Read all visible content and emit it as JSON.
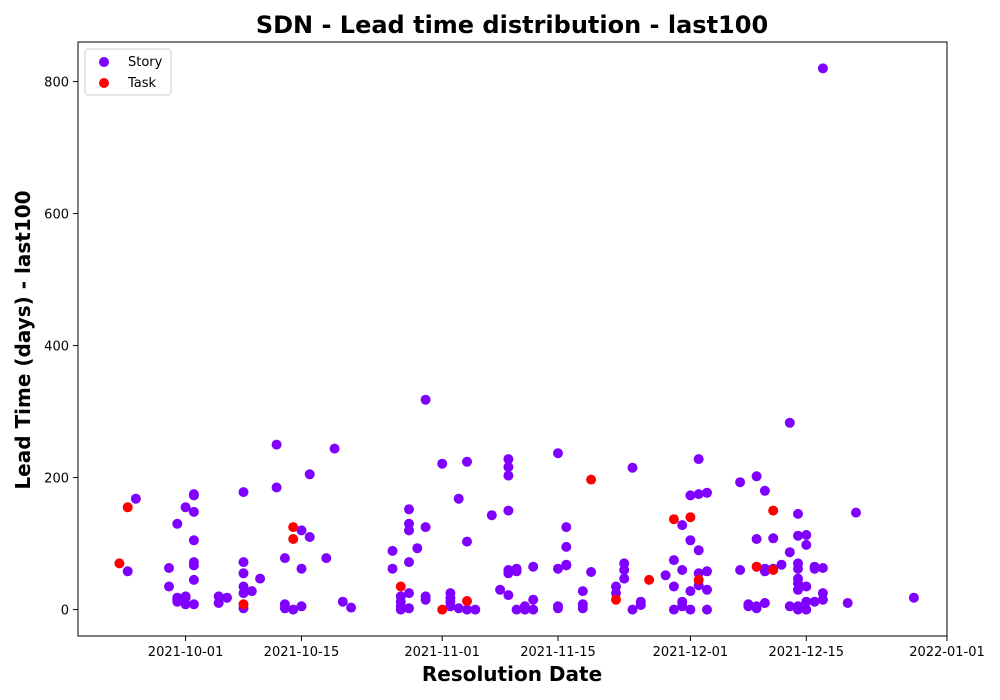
{
  "chart_data": {
    "type": "scatter",
    "title": "SDN - Lead time distribution - last100",
    "xlabel": "Resolution Date",
    "ylabel": "Lead Time (days) - last100",
    "x_type": "date",
    "xlim": [
      "2021-09-18",
      "2022-01-01"
    ],
    "ylim": [
      -40,
      860
    ],
    "xticks": [
      "2021-10-01",
      "2021-10-15",
      "2021-11-01",
      "2021-11-15",
      "2021-12-01",
      "2021-12-15",
      "2022-01-01"
    ],
    "yticks": [
      0,
      200,
      400,
      600,
      800
    ],
    "legend_position": "top-left",
    "grid": false,
    "series": [
      {
        "name": "Story",
        "color": "#7f00ff",
        "points": [
          [
            "2021-09-24",
            58
          ],
          [
            "2021-09-25",
            168
          ],
          [
            "2021-09-29",
            63
          ],
          [
            "2021-09-29",
            35
          ],
          [
            "2021-09-30",
            130
          ],
          [
            "2021-09-30",
            18
          ],
          [
            "2021-09-30",
            12
          ],
          [
            "2021-09-30",
            15
          ],
          [
            "2021-10-01",
            155
          ],
          [
            "2021-10-01",
            18
          ],
          [
            "2021-10-01",
            8
          ],
          [
            "2021-10-01",
            20
          ],
          [
            "2021-10-02",
            175
          ],
          [
            "2021-10-02",
            173
          ],
          [
            "2021-10-02",
            148
          ],
          [
            "2021-10-02",
            105
          ],
          [
            "2021-10-02",
            72
          ],
          [
            "2021-10-02",
            67
          ],
          [
            "2021-10-02",
            45
          ],
          [
            "2021-10-02",
            8
          ],
          [
            "2021-10-05",
            10
          ],
          [
            "2021-10-05",
            20
          ],
          [
            "2021-10-06",
            18
          ],
          [
            "2021-10-08",
            178
          ],
          [
            "2021-10-08",
            72
          ],
          [
            "2021-10-08",
            55
          ],
          [
            "2021-10-08",
            35
          ],
          [
            "2021-10-08",
            25
          ],
          [
            "2021-10-08",
            2
          ],
          [
            "2021-10-09",
            28
          ],
          [
            "2021-10-10",
            47
          ],
          [
            "2021-10-12",
            185
          ],
          [
            "2021-10-12",
            250
          ],
          [
            "2021-10-13",
            78
          ],
          [
            "2021-10-13",
            8
          ],
          [
            "2021-10-13",
            2
          ],
          [
            "2021-10-14",
            0
          ],
          [
            "2021-10-15",
            5
          ],
          [
            "2021-10-15",
            62
          ],
          [
            "2021-10-15",
            120
          ],
          [
            "2021-10-16",
            110
          ],
          [
            "2021-10-16",
            205
          ],
          [
            "2021-10-18",
            78
          ],
          [
            "2021-10-19",
            244
          ],
          [
            "2021-10-20",
            12
          ],
          [
            "2021-10-21",
            3
          ],
          [
            "2021-10-26",
            62
          ],
          [
            "2021-10-26",
            89
          ],
          [
            "2021-10-27",
            5
          ],
          [
            "2021-10-27",
            20
          ],
          [
            "2021-10-27",
            12
          ],
          [
            "2021-10-27",
            0
          ],
          [
            "2021-10-28",
            2
          ],
          [
            "2021-10-28",
            25
          ],
          [
            "2021-10-28",
            72
          ],
          [
            "2021-10-28",
            120
          ],
          [
            "2021-10-28",
            130
          ],
          [
            "2021-10-28",
            152
          ],
          [
            "2021-10-29",
            93
          ],
          [
            "2021-10-30",
            125
          ],
          [
            "2021-10-30",
            20
          ],
          [
            "2021-10-30",
            15
          ],
          [
            "2021-10-30",
            318
          ],
          [
            "2021-11-01",
            221
          ],
          [
            "2021-11-02",
            25
          ],
          [
            "2021-11-02",
            18
          ],
          [
            "2021-11-02",
            12
          ],
          [
            "2021-11-02",
            5
          ],
          [
            "2021-11-03",
            168
          ],
          [
            "2021-11-03",
            2
          ],
          [
            "2021-11-04",
            0
          ],
          [
            "2021-11-04",
            224
          ],
          [
            "2021-11-04",
            103
          ],
          [
            "2021-11-05",
            0
          ],
          [
            "2021-11-07",
            143
          ],
          [
            "2021-11-08",
            30
          ],
          [
            "2021-11-09",
            22
          ],
          [
            "2021-11-09",
            228
          ],
          [
            "2021-11-09",
            216
          ],
          [
            "2021-11-09",
            203
          ],
          [
            "2021-11-09",
            150
          ],
          [
            "2021-11-09",
            60
          ],
          [
            "2021-11-09",
            55
          ],
          [
            "2021-11-10",
            62
          ],
          [
            "2021-11-10",
            58
          ],
          [
            "2021-11-10",
            0
          ],
          [
            "2021-11-11",
            5
          ],
          [
            "2021-11-11",
            0
          ],
          [
            "2021-11-12",
            15
          ],
          [
            "2021-11-12",
            0
          ],
          [
            "2021-11-12",
            65
          ],
          [
            "2021-11-15",
            237
          ],
          [
            "2021-11-15",
            62
          ],
          [
            "2021-11-15",
            5
          ],
          [
            "2021-11-15",
            2
          ],
          [
            "2021-11-16",
            67
          ],
          [
            "2021-11-16",
            95
          ],
          [
            "2021-11-16",
            125
          ],
          [
            "2021-11-16",
            68
          ],
          [
            "2021-11-18",
            28
          ],
          [
            "2021-11-18",
            8
          ],
          [
            "2021-11-18",
            2
          ],
          [
            "2021-11-19",
            57
          ],
          [
            "2021-11-22",
            35
          ],
          [
            "2021-11-22",
            25
          ],
          [
            "2021-11-23",
            47
          ],
          [
            "2021-11-23",
            60
          ],
          [
            "2021-11-23",
            70
          ],
          [
            "2021-11-24",
            0
          ],
          [
            "2021-11-24",
            215
          ],
          [
            "2021-11-25",
            12
          ],
          [
            "2021-11-25",
            7
          ],
          [
            "2021-11-28",
            52
          ],
          [
            "2021-11-29",
            35
          ],
          [
            "2021-11-29",
            75
          ],
          [
            "2021-11-29",
            0
          ],
          [
            "2021-11-30",
            12
          ],
          [
            "2021-11-30",
            5
          ],
          [
            "2021-11-30",
            60
          ],
          [
            "2021-11-30",
            128
          ],
          [
            "2021-12-01",
            0
          ],
          [
            "2021-12-01",
            28
          ],
          [
            "2021-12-01",
            105
          ],
          [
            "2021-12-01",
            173
          ],
          [
            "2021-12-02",
            175
          ],
          [
            "2021-12-02",
            228
          ],
          [
            "2021-12-02",
            90
          ],
          [
            "2021-12-02",
            55
          ],
          [
            "2021-12-02",
            37
          ],
          [
            "2021-12-03",
            30
          ],
          [
            "2021-12-03",
            0
          ],
          [
            "2021-12-03",
            58
          ],
          [
            "2021-12-03",
            177
          ],
          [
            "2021-12-07",
            193
          ],
          [
            "2021-12-07",
            60
          ],
          [
            "2021-12-08",
            5
          ],
          [
            "2021-12-08",
            8
          ],
          [
            "2021-12-09",
            202
          ],
          [
            "2021-12-09",
            107
          ],
          [
            "2021-12-09",
            2
          ],
          [
            "2021-12-09",
            5
          ],
          [
            "2021-12-10",
            10
          ],
          [
            "2021-12-10",
            180
          ],
          [
            "2021-12-10",
            62
          ],
          [
            "2021-12-10",
            58
          ],
          [
            "2021-12-11",
            108
          ],
          [
            "2021-12-11",
            62
          ],
          [
            "2021-12-12",
            68
          ],
          [
            "2021-12-13",
            283
          ],
          [
            "2021-12-13",
            5
          ],
          [
            "2021-12-13",
            87
          ],
          [
            "2021-12-14",
            145
          ],
          [
            "2021-12-14",
            112
          ],
          [
            "2021-12-14",
            70
          ],
          [
            "2021-12-14",
            62
          ],
          [
            "2021-12-14",
            47
          ],
          [
            "2021-12-14",
            40
          ],
          [
            "2021-12-14",
            30
          ],
          [
            "2021-12-14",
            5
          ],
          [
            "2021-12-14",
            0
          ],
          [
            "2021-12-15",
            113
          ],
          [
            "2021-12-15",
            98
          ],
          [
            "2021-12-15",
            35
          ],
          [
            "2021-12-15",
            0
          ],
          [
            "2021-12-15",
            12
          ],
          [
            "2021-12-16",
            65
          ],
          [
            "2021-12-16",
            12
          ],
          [
            "2021-12-16",
            62
          ],
          [
            "2021-12-17",
            63
          ],
          [
            "2021-12-17",
            25
          ],
          [
            "2021-12-17",
            15
          ],
          [
            "2021-12-17",
            820
          ],
          [
            "2021-12-20",
            10
          ],
          [
            "2021-12-21",
            147
          ],
          [
            "2021-12-28",
            18
          ]
        ]
      },
      {
        "name": "Task",
        "color": "#ff0000",
        "points": [
          [
            "2021-09-23",
            70
          ],
          [
            "2021-09-24",
            155
          ],
          [
            "2021-10-08",
            8
          ],
          [
            "2021-10-14",
            125
          ],
          [
            "2021-10-14",
            107
          ],
          [
            "2021-10-27",
            35
          ],
          [
            "2021-11-01",
            0
          ],
          [
            "2021-11-04",
            13
          ],
          [
            "2021-11-19",
            197
          ],
          [
            "2021-11-22",
            15
          ],
          [
            "2021-11-26",
            45
          ],
          [
            "2021-11-29",
            137
          ],
          [
            "2021-12-01",
            140
          ],
          [
            "2021-12-02",
            45
          ],
          [
            "2021-12-09",
            65
          ],
          [
            "2021-12-11",
            150
          ],
          [
            "2021-12-11",
            60
          ]
        ]
      }
    ]
  }
}
